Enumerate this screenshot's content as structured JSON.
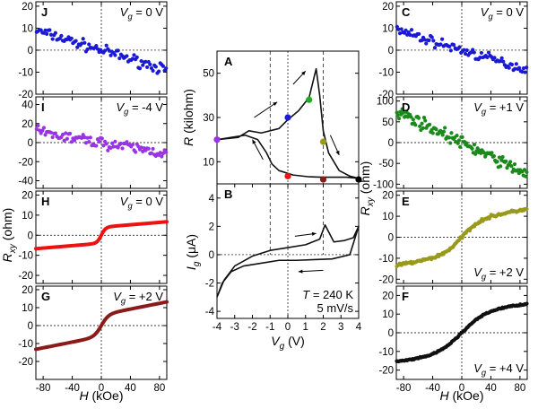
{
  "chart_data": [
    {
      "type": "scatter",
      "panel": "J",
      "label": "V_g = 0 V",
      "xlim": [
        -90,
        90
      ],
      "ylim": [
        -20,
        22
      ],
      "xticks": [
        -80,
        -40,
        0,
        40,
        80
      ],
      "yticks": [
        -20,
        -10,
        0,
        10,
        20
      ],
      "color": "#1a1ad6",
      "shape": "tanh",
      "params": {
        "off": 0,
        "amp": 0,
        "w": 10,
        "slope": -0.1,
        "noise": 2.0,
        "n": 90
      }
    },
    {
      "type": "scatter",
      "panel": "I",
      "label": "V_g = -4 V",
      "xlim": [
        -90,
        90
      ],
      "ylim": [
        -48,
        48
      ],
      "xticks": [
        -80,
        -40,
        0,
        40,
        80
      ],
      "yticks": [
        -40,
        -20,
        0,
        20,
        40
      ],
      "color": "#9933e6",
      "shape": "tanh",
      "params": {
        "off": 0,
        "amp": 0,
        "w": 10,
        "slope": -0.125,
        "noise": 5.0,
        "n": 90
      }
    },
    {
      "type": "line",
      "panel": "H",
      "label": "V_g = 0 V",
      "xlim": [
        -90,
        90
      ],
      "ylim": [
        -24,
        22
      ],
      "xticks": [
        -80,
        -40,
        0,
        40,
        80
      ],
      "yticks": [
        -20,
        -10,
        0,
        10,
        20
      ],
      "color": "#ee1111",
      "shape": "tanh",
      "params": {
        "off": 0,
        "amp": 4,
        "w": 6,
        "slope": 0.03,
        "noise": 0,
        "n": 240
      }
    },
    {
      "type": "line",
      "panel": "G",
      "label": "V_g = +2 V",
      "xlim": [
        -90,
        90
      ],
      "ylim": [
        -30,
        22
      ],
      "xticks": [
        -80,
        -40,
        0,
        40,
        80
      ],
      "yticks": [
        -20,
        -10,
        0,
        10,
        20
      ],
      "color": "#8b1a1a",
      "shape": "tanh",
      "params": {
        "off": 0,
        "amp": 6,
        "w": 10,
        "slope": 0.08,
        "noise": 0,
        "n": 240
      }
    },
    {
      "type": "line",
      "panel": "A",
      "xlim": [
        -4,
        4
      ],
      "ylim": [
        0,
        60
      ],
      "yticks": [
        10,
        30,
        50
      ],
      "ylabel": "R (kilohm)",
      "loop": [
        [
          -4,
          20
        ],
        [
          -2.8,
          21
        ],
        [
          -2.2,
          24
        ],
        [
          -1.5,
          23
        ],
        [
          -0.5,
          25
        ],
        [
          0,
          29
        ],
        [
          0.6,
          33
        ],
        [
          1.2,
          39
        ],
        [
          1.6,
          52
        ],
        [
          1.8,
          40
        ],
        [
          2.0,
          24
        ],
        [
          2.3,
          14
        ],
        [
          2.9,
          6
        ],
        [
          3.5,
          3.5
        ],
        [
          4,
          2.5
        ],
        [
          3.3,
          3.0
        ],
        [
          2.5,
          3.0
        ],
        [
          1.9,
          3.0
        ],
        [
          1.2,
          3.2
        ],
        [
          0.3,
          4.0
        ],
        [
          -0.5,
          6
        ],
        [
          -0.9,
          9
        ],
        [
          -1.2,
          14
        ],
        [
          -1.7,
          20
        ],
        [
          -2.4,
          22
        ],
        [
          -3.2,
          21
        ],
        [
          -4,
          20
        ]
      ],
      "markers": [
        {
          "x": -4,
          "y": 20,
          "color": "#9933e6"
        },
        {
          "x": 0,
          "y": 30,
          "color": "#1a1ad6"
        },
        {
          "x": 1.2,
          "y": 38,
          "color": "#22aa22"
        },
        {
          "x": 2,
          "y": 19,
          "color": "#99991a"
        },
        {
          "x": 4,
          "y": 2,
          "color": "#000000"
        },
        {
          "x": 2,
          "y": 2,
          "color": "#8b1a1a"
        },
        {
          "x": 0,
          "y": 3.5,
          "color": "#ee1111"
        }
      ]
    },
    {
      "type": "line",
      "panel": "B",
      "xlim": [
        -4,
        4
      ],
      "ylim": [
        -4.5,
        5
      ],
      "xticks": [
        -4,
        -3,
        -2,
        -1,
        0,
        1,
        2,
        3,
        4
      ],
      "yticks": [
        -4,
        -2,
        0,
        2,
        4
      ],
      "xlabel": "V_g (V)",
      "ylabel": "I_g (μA)",
      "loop": [
        [
          -4,
          -3.0
        ],
        [
          -3.6,
          -1.8
        ],
        [
          -3.0,
          -0.8
        ],
        [
          -2.0,
          -0.1
        ],
        [
          -1.0,
          0.3
        ],
        [
          0,
          0.5
        ],
        [
          1.0,
          0.7
        ],
        [
          1.8,
          1.1
        ],
        [
          2.1,
          2.1
        ],
        [
          2.6,
          0.9
        ],
        [
          3.2,
          1.0
        ],
        [
          3.7,
          1.2
        ],
        [
          4,
          2.0
        ],
        [
          3.5,
          0.0
        ],
        [
          2.5,
          -0.3
        ],
        [
          1.5,
          -0.35
        ],
        [
          0.5,
          -0.4
        ],
        [
          -0.5,
          -0.4
        ],
        [
          -1.5,
          -0.6
        ],
        [
          -2.5,
          -0.8
        ],
        [
          -3.2,
          -1.2
        ],
        [
          -3.7,
          -2.0
        ],
        [
          -4,
          -3.0
        ]
      ],
      "text": [
        "T = 240 K",
        "5 mV/s"
      ]
    },
    {
      "type": "scatter",
      "panel": "C",
      "label": "V_g = 0 V",
      "xlim": [
        -90,
        90
      ],
      "ylim": [
        -20,
        22
      ],
      "xticks": [
        -80,
        -40,
        0,
        40,
        80
      ],
      "yticks": [
        -20,
        -10,
        0,
        10,
        20
      ],
      "color": "#1a1ad6",
      "shape": "tanh",
      "params": {
        "off": 0,
        "amp": 0,
        "w": 10,
        "slope": -0.1,
        "noise": 2.0,
        "n": 90
      }
    },
    {
      "type": "scatter",
      "panel": "D",
      "label": "V_g = +1 V",
      "xlim": [
        -90,
        90
      ],
      "ylim": [
        -110,
        110
      ],
      "xticks": [
        -80,
        -40,
        0,
        40,
        80
      ],
      "yticks": [
        -100,
        -50,
        0,
        50,
        100
      ],
      "ylabel": "R_xy (ohm)",
      "color": "#1a8a1a",
      "shape": "tanh",
      "params": {
        "off": 0,
        "amp": 0,
        "w": 10,
        "slope": -0.85,
        "noise": 12,
        "n": 120
      }
    },
    {
      "type": "scatter",
      "panel": "E",
      "label": "V_g = +2 V",
      "xlim": [
        -90,
        90
      ],
      "ylim": [
        -22,
        22
      ],
      "xticks": [
        -80,
        -40,
        0,
        40,
        80
      ],
      "yticks": [
        -20,
        -10,
        0,
        10,
        20
      ],
      "color": "#99991a",
      "shape": "tanh",
      "params": {
        "off": 0,
        "amp": 8,
        "w": 25,
        "slope": 0.06,
        "noise": 0.6,
        "n": 140
      }
    },
    {
      "type": "scatter",
      "panel": "F",
      "label": "V_g = +4 V",
      "xlim": [
        -90,
        90
      ],
      "ylim": [
        -25,
        25
      ],
      "xticks": [
        -80,
        -40,
        0,
        40,
        80
      ],
      "yticks": [
        -20,
        -10,
        0,
        10,
        20
      ],
      "xlabel": "H (kOe)",
      "color": "#111111",
      "shape": "tanh",
      "params": {
        "off": 0,
        "amp": 12,
        "w": 35,
        "slope": 0.04,
        "noise": 0.3,
        "n": 140
      }
    }
  ],
  "left_axis": {
    "xlabel": "H (kOe)",
    "ylabel": "R_xy (ohm)"
  }
}
